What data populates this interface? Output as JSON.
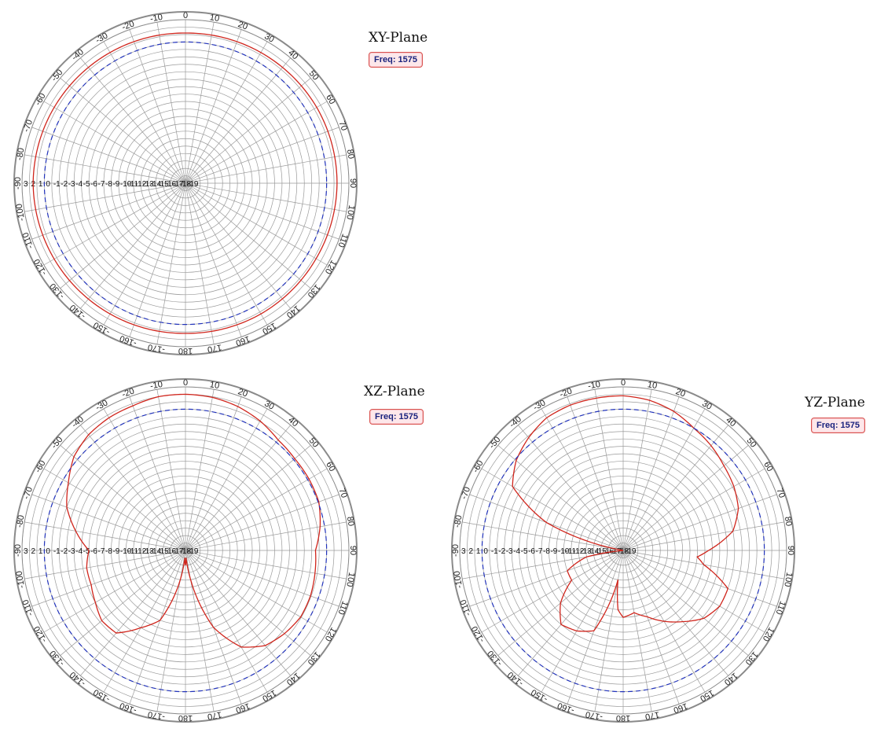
{
  "colors": {
    "grid": "#9a9a9a",
    "outer_ring": "#8a8a8a",
    "pattern": "#d0251c",
    "reference": "#2233bb",
    "badge_border": "#d9534f",
    "badge_text": "#1a237e"
  },
  "radial_labels": [
    "3",
    "2",
    "1",
    "0",
    "-1",
    "-2",
    "-3",
    "-4",
    "-5",
    "-6",
    "-7",
    "-8",
    "-9",
    "-10",
    "-11",
    "-12",
    "-13",
    "-14",
    "-15",
    "-16",
    "-17",
    "-18",
    "-19"
  ],
  "chart_data": [
    {
      "type": "polar-line",
      "title": "XY-Plane",
      "badge": "Freq: 1575",
      "angle_ticks": [
        "0",
        "10",
        "20",
        "30",
        "40",
        "50",
        "60",
        "70",
        "80",
        "90",
        "100",
        "110",
        "120",
        "130",
        "140",
        "150",
        "160",
        "170",
        "180",
        "-170",
        "-160",
        "-150",
        "-140",
        "-130",
        "-120",
        "-110",
        "-100",
        "-90",
        "-80",
        "-70",
        "-60",
        "-50",
        "-40",
        "-30",
        "-20",
        "-10"
      ],
      "r_range": [
        -19,
        3
      ],
      "grid": true,
      "series": [
        {
          "style": "solid-red",
          "theta": [
            0,
            30,
            60,
            90,
            120,
            150,
            180,
            210,
            240,
            270,
            300,
            330,
            360
          ],
          "r": [
            1.2,
            1.3,
            1.4,
            1.4,
            1.3,
            1.3,
            1.2,
            1.3,
            1.4,
            1.5,
            1.4,
            1.3,
            1.2
          ]
        },
        {
          "style": "dashed-blue",
          "theta": [
            0,
            90,
            180,
            270,
            360
          ],
          "r": [
            0,
            0,
            0,
            0,
            0
          ]
        }
      ]
    },
    {
      "type": "polar-line",
      "title": "XZ-Plane",
      "badge": "Freq: 1575",
      "angle_ticks": [
        "0",
        "10",
        "20",
        "30",
        "40",
        "50",
        "60",
        "70",
        "80",
        "90",
        "100",
        "110",
        "120",
        "130",
        "140",
        "150",
        "160",
        "170",
        "180",
        "-170",
        "-160",
        "-150",
        "-140",
        "-130",
        "-120",
        "-110",
        "-100",
        "-90",
        "-80",
        "-70",
        "-60",
        "-50",
        "-40",
        "-30",
        "-20",
        "-10"
      ],
      "r_range": [
        -19,
        3
      ],
      "grid": true,
      "series": [
        {
          "style": "solid-red",
          "theta": [
            0,
            10,
            20,
            30,
            40,
            50,
            60,
            70,
            80,
            90,
            100,
            110,
            120,
            130,
            140,
            150,
            160,
            170,
            175,
            180,
            185,
            190,
            200,
            210,
            220,
            230,
            240,
            250,
            260,
            270,
            280,
            290,
            300,
            310,
            320,
            330,
            340,
            350,
            360
          ],
          "r": [
            2.0,
            1.9,
            1.6,
            1.1,
            0.4,
            0.2,
            0.2,
            0.1,
            -0.6,
            -1.5,
            -1.3,
            -1.1,
            -1.1,
            -1.6,
            -2.3,
            -4.0,
            -8.0,
            -15.0,
            -18.0,
            -17.0,
            -18.0,
            -15.0,
            -9.0,
            -7.0,
            -4.5,
            -4.3,
            -5.0,
            -5.5,
            -5.5,
            -6.0,
            -4.0,
            -2.0,
            -0.8,
            0.6,
            1.3,
            1.6,
            1.7,
            2.0,
            2.0
          ]
        },
        {
          "style": "dashed-blue",
          "theta": [
            0,
            90,
            180,
            270,
            360
          ],
          "r": [
            0,
            0,
            0,
            0,
            0
          ]
        }
      ]
    },
    {
      "type": "polar-line",
      "title": "YZ-Plane",
      "badge": "Freq: 1575",
      "angle_ticks": [
        "0",
        "10",
        "20",
        "30",
        "40",
        "50",
        "60",
        "70",
        "80",
        "90",
        "100",
        "110",
        "120",
        "130",
        "140",
        "150",
        "160",
        "170",
        "180",
        "-170",
        "-160",
        "-150",
        "-140",
        "-130",
        "-120",
        "-110",
        "-100",
        "-90",
        "-80",
        "-70",
        "-60",
        "-50",
        "-40",
        "-30",
        "-20",
        "-10"
      ],
      "r_range": [
        -19,
        3
      ],
      "grid": true,
      "series": [
        {
          "style": "solid-red",
          "theta": [
            0,
            10,
            20,
            30,
            40,
            50,
            60,
            70,
            80,
            90,
            95,
            100,
            110,
            120,
            130,
            140,
            150,
            160,
            170,
            180,
            185,
            190,
            200,
            210,
            220,
            230,
            240,
            250,
            260,
            265,
            270,
            280,
            290,
            300,
            310,
            320,
            330,
            340,
            350,
            360
          ],
          "r": [
            1.8,
            1.5,
            0.9,
            0.0,
            -0.6,
            -1.3,
            -1.8,
            -2.5,
            -4.0,
            -7.5,
            -9.0,
            -8.0,
            -4.0,
            -4.0,
            -4.8,
            -6.5,
            -8.0,
            -9.5,
            -10.5,
            -10.0,
            -11.0,
            -15.0,
            -7.5,
            -6.5,
            -6.0,
            -8.0,
            -11.0,
            -11.0,
            -14.0,
            -19.0,
            -19.0,
            -19.0,
            -8.0,
            -1.8,
            -0.2,
            0.8,
            1.6,
            1.8,
            1.8,
            1.8
          ]
        },
        {
          "style": "dashed-blue",
          "theta": [
            0,
            90,
            180,
            270,
            360
          ],
          "r": [
            0,
            0,
            0,
            0,
            0
          ]
        }
      ]
    }
  ]
}
